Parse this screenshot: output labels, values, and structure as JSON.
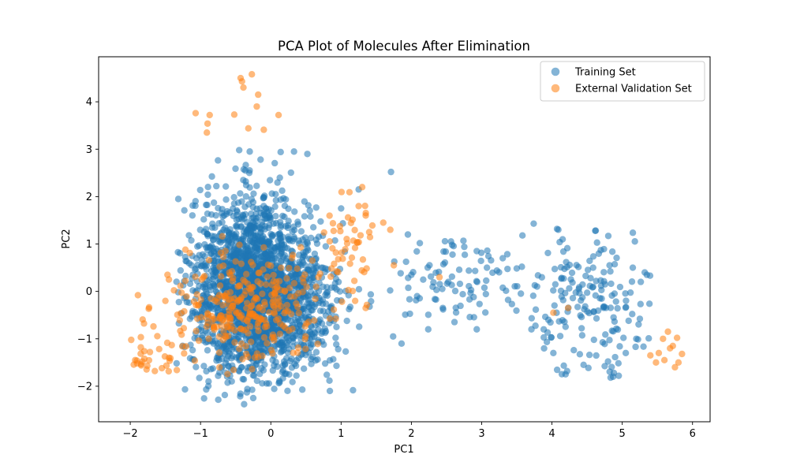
{
  "chart_data": {
    "type": "scatter",
    "title": "PCA Plot of Molecules After Elimination",
    "xlabel": "PC1",
    "ylabel": "PC2",
    "xlim": [
      -2.45,
      6.25
    ],
    "ylim": [
      -2.75,
      4.95
    ],
    "xticks": [
      -2,
      -1,
      0,
      1,
      2,
      3,
      4,
      5,
      6
    ],
    "yticks": [
      -2,
      -1,
      0,
      1,
      2,
      3,
      4
    ],
    "xtick_labels": [
      "−2",
      "−1",
      "0",
      "1",
      "2",
      "3",
      "4",
      "5",
      "6"
    ],
    "ytick_labels": [
      "−2",
      "−1",
      "0",
      "1",
      "2",
      "3",
      "4"
    ],
    "grid": false,
    "legend_position": "top-right",
    "series": [
      {
        "name": "Training Set",
        "color": "#1f77b4",
        "opacity": 0.55,
        "marker": "circle",
        "clusters": [
          {
            "cx": -0.3,
            "cy": 0.1,
            "sx": 0.42,
            "sy": 0.95,
            "n": 1600,
            "xmin": -1.35,
            "xmax": 1.3,
            "ymin": -2.3,
            "ymax": 2.9
          },
          {
            "cx": 0.2,
            "cy": -0.3,
            "sx": 0.45,
            "sy": 0.8,
            "n": 500,
            "xmin": -1.1,
            "xmax": 1.35,
            "ymin": -2.2,
            "ymax": 2.6
          },
          {
            "cx": 2.6,
            "cy": 0.2,
            "sx": 0.7,
            "sy": 0.45,
            "n": 90,
            "xmin": 1.3,
            "xmax": 3.6,
            "ymin": -1.0,
            "ymax": 1.2
          },
          {
            "cx": 4.6,
            "cy": -0.3,
            "sx": 0.55,
            "sy": 0.75,
            "n": 170,
            "xmin": 3.4,
            "xmax": 5.4,
            "ymin": -1.9,
            "ymax": 1.5
          }
        ],
        "points": [
          {
            "x": -0.45,
            "y": 2.98
          },
          {
            "x": 0.14,
            "y": 2.94
          },
          {
            "x": 0.33,
            "y": 2.95
          },
          {
            "x": 0.52,
            "y": 2.9
          },
          {
            "x": -0.3,
            "y": 2.95
          },
          {
            "x": 1.71,
            "y": 2.52
          },
          {
            "x": 1.95,
            "y": 1.2
          },
          {
            "x": 2.58,
            "y": 0.98
          },
          {
            "x": 2.93,
            "y": 0.85
          },
          {
            "x": 3.08,
            "y": 0.86
          },
          {
            "x": 3.74,
            "y": 1.43
          },
          {
            "x": 3.58,
            "y": 1.18
          },
          {
            "x": 4.11,
            "y": 1.04
          },
          {
            "x": 4.82,
            "y": 0.55
          },
          {
            "x": 5.15,
            "y": 0.5
          },
          {
            "x": 5.32,
            "y": 0.4
          },
          {
            "x": 5.35,
            "y": 0.35
          },
          {
            "x": 4.02,
            "y": -1.3
          },
          {
            "x": 4.45,
            "y": -1.55
          },
          {
            "x": 4.87,
            "y": -1.8
          },
          {
            "x": 4.95,
            "y": -1.78
          },
          {
            "x": 5.2,
            "y": -1.0
          },
          {
            "x": 5.05,
            "y": -1.3
          },
          {
            "x": 2.93,
            "y": -0.8
          },
          {
            "x": 2.24,
            "y": -0.8
          },
          {
            "x": 1.74,
            "y": -0.95
          },
          {
            "x": 1.86,
            "y": -1.1
          },
          {
            "x": 0.84,
            "y": -2.1
          },
          {
            "x": -0.38,
            "y": -2.38
          },
          {
            "x": -0.25,
            "y": -2.25
          },
          {
            "x": 1.25,
            "y": 2.15
          },
          {
            "x": 1.0,
            "y": 1.75
          },
          {
            "x": 2.0,
            "y": 0.35
          },
          {
            "x": 3.3,
            "y": 0.7
          },
          {
            "x": 4.55,
            "y": 0.28
          },
          {
            "x": 3.95,
            "y": -0.6
          }
        ]
      },
      {
        "name": "External Validation Set",
        "color": "#ff7f0e",
        "opacity": 0.55,
        "marker": "circle",
        "clusters": [
          {
            "cx": -0.45,
            "cy": -0.3,
            "sx": 0.4,
            "sy": 0.6,
            "n": 230,
            "xmin": -1.3,
            "xmax": 0.5,
            "ymin": -2.3,
            "ymax": 1.4
          },
          {
            "cx": 0.3,
            "cy": -0.2,
            "sx": 0.3,
            "sy": 0.6,
            "n": 60,
            "xmin": -0.2,
            "xmax": 1.0,
            "ymin": -1.8,
            "ymax": 1.2
          },
          {
            "cx": 1.1,
            "cy": 0.9,
            "sx": 0.2,
            "sy": 0.7,
            "n": 45,
            "xmin": 0.5,
            "xmax": 1.6,
            "ymin": -0.6,
            "ymax": 2.2
          },
          {
            "cx": -1.5,
            "cy": -1.1,
            "sx": 0.3,
            "sy": 0.7,
            "n": 35,
            "xmin": -2.0,
            "xmax": -1.2,
            "ymin": -1.7,
            "ymax": 0.4
          }
        ],
        "points": [
          {
            "x": -0.43,
            "y": 4.5
          },
          {
            "x": -0.41,
            "y": 4.43
          },
          {
            "x": -0.27,
            "y": 4.58
          },
          {
            "x": -0.39,
            "y": 4.3
          },
          {
            "x": -0.18,
            "y": 4.15
          },
          {
            "x": -0.2,
            "y": 3.9
          },
          {
            "x": -0.52,
            "y": 3.73
          },
          {
            "x": 0.11,
            "y": 3.72
          },
          {
            "x": -1.07,
            "y": 3.76
          },
          {
            "x": -0.87,
            "y": 3.72
          },
          {
            "x": -0.9,
            "y": 3.54
          },
          {
            "x": -0.91,
            "y": 3.35
          },
          {
            "x": -0.32,
            "y": 3.44
          },
          {
            "x": -0.1,
            "y": 3.41
          },
          {
            "x": -1.93,
            "y": -1.45
          },
          {
            "x": -1.85,
            "y": -1.18
          },
          {
            "x": -1.8,
            "y": -1.42
          },
          {
            "x": -1.72,
            "y": -1.28
          },
          {
            "x": -1.65,
            "y": -1.68
          },
          {
            "x": -1.55,
            "y": -1.62
          },
          {
            "x": -1.45,
            "y": -1.4
          },
          {
            "x": -1.47,
            "y": 0.35
          },
          {
            "x": -1.45,
            "y": 0.25
          },
          {
            "x": -1.5,
            "y": -0.2
          },
          {
            "x": 1.6,
            "y": 1.45
          },
          {
            "x": 1.7,
            "y": 1.3
          },
          {
            "x": 1.3,
            "y": 2.2
          },
          {
            "x": 1.25,
            "y": 1.8
          },
          {
            "x": 1.35,
            "y": 1.6
          },
          {
            "x": 1.4,
            "y": 1.25
          },
          {
            "x": 1.75,
            "y": 0.55
          },
          {
            "x": 2.4,
            "y": 0.3
          },
          {
            "x": 1.2,
            "y": -0.2
          },
          {
            "x": 1.35,
            "y": -0.35
          },
          {
            "x": 4.23,
            "y": -0.35
          },
          {
            "x": 4.02,
            "y": -0.45
          },
          {
            "x": 5.4,
            "y": -1.35
          },
          {
            "x": 5.48,
            "y": -1.5
          },
          {
            "x": 5.58,
            "y": -1.0
          },
          {
            "x": 5.65,
            "y": -0.85
          },
          {
            "x": 5.72,
            "y": -1.15
          },
          {
            "x": 5.78,
            "y": -0.98
          },
          {
            "x": 5.85,
            "y": -1.32
          },
          {
            "x": 5.8,
            "y": -1.5
          },
          {
            "x": 5.75,
            "y": -1.6
          },
          {
            "x": 5.6,
            "y": -1.45
          },
          {
            "x": 5.52,
            "y": -1.3
          },
          {
            "x": 5.68,
            "y": -1.2
          }
        ]
      }
    ]
  }
}
